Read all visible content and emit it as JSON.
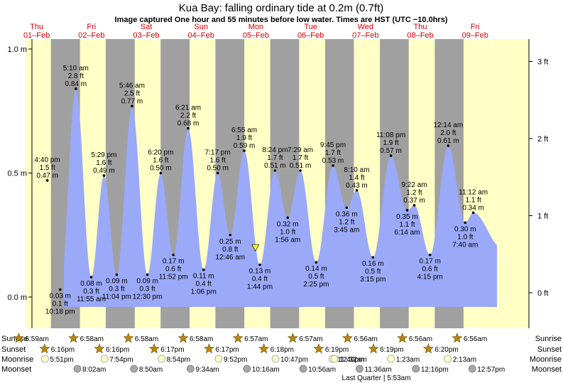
{
  "chart_data": {
    "type": "area",
    "title": "Kua Bay: falling  ordinary tide at 0.2m (0.7ft)",
    "subtitle": "Image captured One hour and 55 minutes before low water. Times are HST (UTC −10.0hrs)",
    "ylim_m": [
      -0.2,
      1.05
    ],
    "left_axis": {
      "unit": "m",
      "ticks": [
        {
          "value": 0.0,
          "label": "0.0 m"
        },
        {
          "value": 0.5,
          "label": "0.5 m"
        },
        {
          "value": 1.0,
          "label": "1.0 m"
        }
      ]
    },
    "right_axis": {
      "unit": "ft",
      "ticks": [
        {
          "value": 0,
          "label": "0 ft"
        },
        {
          "value": 1,
          "label": "1 ft"
        },
        {
          "value": 2,
          "label": "2 ft"
        },
        {
          "value": 3,
          "label": "3 ft"
        }
      ]
    },
    "days": [
      {
        "day": "Thu",
        "date": "01–Feb"
      },
      {
        "day": "Fri",
        "date": "02–Feb"
      },
      {
        "day": "Sat",
        "date": "03–Feb"
      },
      {
        "day": "Sun",
        "date": "04–Feb"
      },
      {
        "day": "Mon",
        "date": "05–Feb"
      },
      {
        "day": "Tue",
        "date": "06–Feb"
      },
      {
        "day": "Wed",
        "date": "07–Feb"
      },
      {
        "day": "Thu",
        "date": "08–Feb"
      },
      {
        "day": "Fri",
        "date": "09–Feb"
      }
    ],
    "daylight": [
      {
        "sunrise": "6:59am",
        "sunset": "6:16pm"
      },
      {
        "sunrise": "6:58am",
        "sunset": "6:16pm"
      },
      {
        "sunrise": "6:58am",
        "sunset": "6:17pm"
      },
      {
        "sunrise": "6:58am",
        "sunset": "6:17pm"
      },
      {
        "sunrise": "6:57am",
        "sunset": "6:18pm"
      },
      {
        "sunrise": "6:57am",
        "sunset": "6:19pm"
      },
      {
        "sunrise": "6:56am",
        "sunset": "6:19pm"
      },
      {
        "sunrise": "6:56am",
        "sunset": "6:20pm"
      },
      {
        "sunrise": "6:56am",
        "sunset": null
      }
    ],
    "extrema": [
      {
        "time": "4:40 pm",
        "ft": "1.5 ft",
        "m": 0.47,
        "type": "high",
        "dayIndex": 0,
        "hours": 16.67
      },
      {
        "time": "10:18 pm",
        "ft": "0.1 ft",
        "m": 0.03,
        "type": "low",
        "dayIndex": 0,
        "hours": 22.3
      },
      {
        "time": "5:10 am",
        "ft": "2.8 ft",
        "m": 0.84,
        "type": "high",
        "dayIndex": 1,
        "hours": 5.17
      },
      {
        "time": "11:55 am",
        "ft": "0.3 ft",
        "m": 0.08,
        "type": "low",
        "dayIndex": 1,
        "hours": 11.92
      },
      {
        "time": "5:29 pm",
        "ft": "1.6 ft",
        "m": 0.49,
        "type": "high",
        "dayIndex": 1,
        "hours": 17.48
      },
      {
        "time": "11:04 pm",
        "ft": "0.3 ft",
        "m": 0.09,
        "type": "low",
        "dayIndex": 1,
        "hours": 23.07
      },
      {
        "time": "5:46 am",
        "ft": "2.5 ft",
        "m": 0.77,
        "type": "high",
        "dayIndex": 2,
        "hours": 5.77
      },
      {
        "time": "12:30 pm",
        "ft": "0.3 ft",
        "m": 0.09,
        "type": "low",
        "dayIndex": 2,
        "hours": 12.5
      },
      {
        "time": "6:20 pm",
        "ft": "1.6 ft",
        "m": 0.5,
        "type": "high",
        "dayIndex": 2,
        "hours": 18.33
      },
      {
        "time": "11:52 pm",
        "ft": "0.6 ft",
        "m": 0.17,
        "type": "low",
        "dayIndex": 2,
        "hours": 23.87
      },
      {
        "time": "6:21 am",
        "ft": "2.2 ft",
        "m": 0.68,
        "type": "high",
        "dayIndex": 3,
        "hours": 6.35
      },
      {
        "time": "1:06 pm",
        "ft": "0.4 ft",
        "m": 0.11,
        "type": "low",
        "dayIndex": 3,
        "hours": 13.1
      },
      {
        "time": "7:17 pm",
        "ft": "1.6 ft",
        "m": 0.5,
        "type": "high",
        "dayIndex": 3,
        "hours": 19.28
      },
      {
        "time": "12:46 am",
        "ft": "0.8 ft",
        "m": 0.25,
        "type": "low",
        "dayIndex": 4,
        "hours": 0.77
      },
      {
        "time": "6:55 am",
        "ft": "1.9 ft",
        "m": 0.59,
        "type": "high",
        "dayIndex": 4,
        "hours": 6.92
      },
      {
        "time": "1:44 pm",
        "ft": "0.4 ft",
        "m": 0.13,
        "type": "low",
        "dayIndex": 4,
        "hours": 13.73
      },
      {
        "time": "8:24 pm",
        "ft": "1.7 ft",
        "m": 0.51,
        "type": "high",
        "dayIndex": 4,
        "hours": 20.4
      },
      {
        "time": "1:56 am",
        "ft": "1.0 ft",
        "m": 0.32,
        "type": "low",
        "dayIndex": 5,
        "hours": 1.93
      },
      {
        "time": "7:29 am",
        "ft": "1.7 ft",
        "m": 0.51,
        "type": "high",
        "dayIndex": 5,
        "hours": 7.48
      },
      {
        "time": "2:25 pm",
        "ft": "0.5 ft",
        "m": 0.14,
        "type": "low",
        "dayIndex": 5,
        "hours": 14.42
      },
      {
        "time": "9:45 pm",
        "ft": "1.7 ft",
        "m": 0.53,
        "type": "high",
        "dayIndex": 5,
        "hours": 21.75
      },
      {
        "time": "3:45 am",
        "ft": "1.2 ft",
        "m": 0.36,
        "type": "low",
        "dayIndex": 6,
        "hours": 3.75
      },
      {
        "time": "8:10 am",
        "ft": "1.4 ft",
        "m": 0.43,
        "type": "high",
        "dayIndex": 6,
        "hours": 8.17
      },
      {
        "time": "3:15 pm",
        "ft": "0.5 ft",
        "m": 0.16,
        "type": "low",
        "dayIndex": 6,
        "hours": 15.25
      },
      {
        "time": "11:08 pm",
        "ft": "1.9 ft",
        "m": 0.57,
        "type": "high",
        "dayIndex": 6,
        "hours": 23.13
      },
      {
        "time": "6:14 am",
        "ft": "1.1 ft",
        "m": 0.35,
        "type": "low",
        "dayIndex": 7,
        "hours": 6.23
      },
      {
        "time": "9:22 am",
        "ft": "1.2 ft",
        "m": 0.37,
        "type": "high",
        "dayIndex": 7,
        "hours": 9.37
      },
      {
        "time": "4:15 pm",
        "ft": "0.6 ft",
        "m": 0.17,
        "type": "low",
        "dayIndex": 7,
        "hours": 16.25
      },
      {
        "time": "12:14 am",
        "ft": "2.0 ft",
        "m": 0.61,
        "type": "high",
        "dayIndex": 8,
        "hours": 0.23
      },
      {
        "time": "7:40 am",
        "ft": "1.0 ft",
        "m": 0.3,
        "type": "low",
        "dayIndex": 8,
        "hours": 7.67
      },
      {
        "time": "11:12 am",
        "ft": "1.1 ft",
        "m": 0.34,
        "type": "high",
        "dayIndex": 8,
        "hours": 11.2
      }
    ],
    "current_marker": {
      "m": 0.2,
      "dayIndex": 4,
      "hours": 11.8
    },
    "moonrise": [
      "5:51pm",
      "7:54pm",
      "8:54pm",
      "9:52pm",
      "10:47pm",
      "11:40pm",
      "12:32am",
      "1:23am",
      "2:13am"
    ],
    "moonset": [
      "8:02am",
      "8:50am",
      "9:34am",
      "10:16am",
      "10:56am",
      "11:36am",
      "12:16pm",
      "12:57pm"
    ],
    "moon_phase": "Last Quarter | 5:53am",
    "row_labels": {
      "sunrise": "Sunrise",
      "sunset": "Sunset",
      "moonrise": "Moonrise",
      "moonset": "Moonset"
    }
  }
}
